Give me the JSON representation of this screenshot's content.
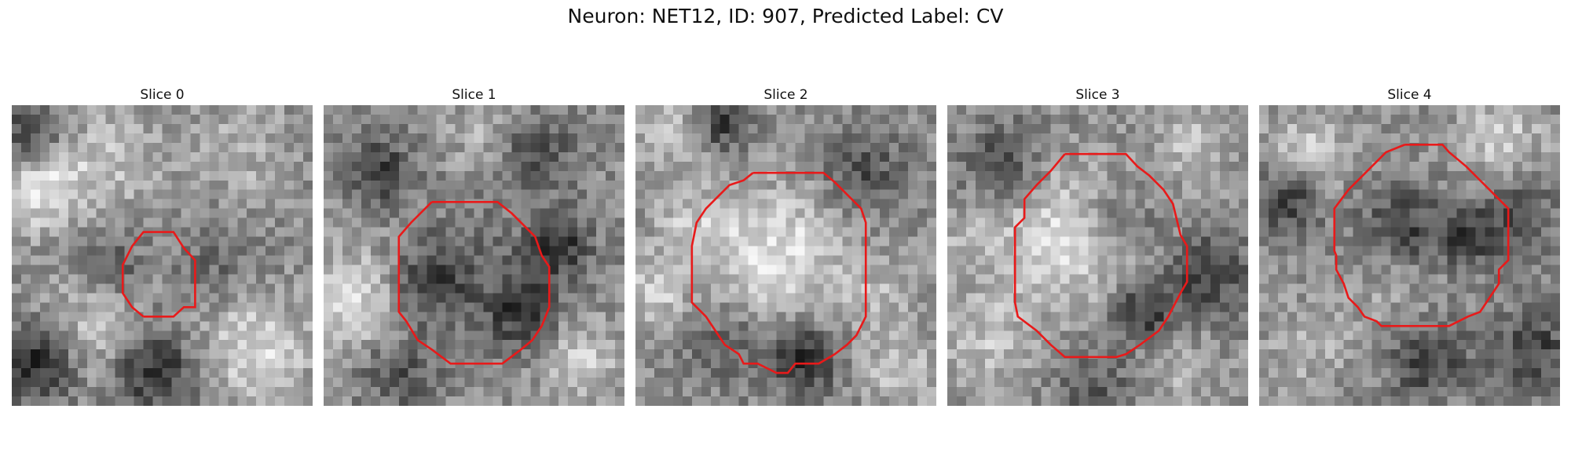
{
  "figure": {
    "title": "Neuron: NET12, ID: 907, Predicted Label: CV"
  },
  "panels": [
    {
      "label": "Slice 0"
    },
    {
      "label": "Slice 1"
    },
    {
      "label": "Slice 2"
    },
    {
      "label": "Slice 3"
    },
    {
      "label": "Slice 4"
    }
  ],
  "colors": {
    "contour": "#e81a1a",
    "colormap": "gray"
  }
}
